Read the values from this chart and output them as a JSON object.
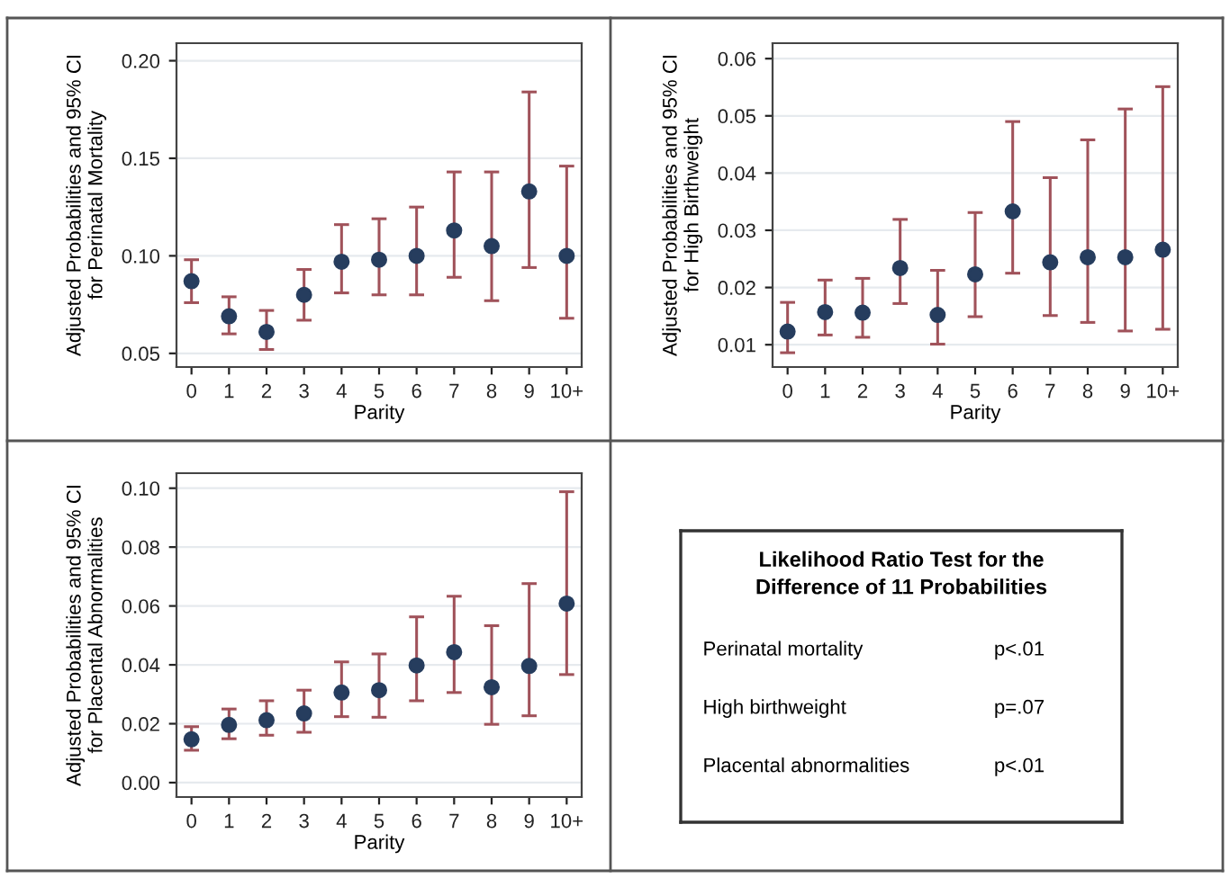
{
  "chart_data": [
    {
      "type": "scatter",
      "ylabel": "Adjusted Probabilities and 95% CI\nfor Perinatal Mortality",
      "xlabel": "Parity",
      "categories": [
        "0",
        "1",
        "2",
        "3",
        "4",
        "5",
        "6",
        "7",
        "8",
        "9",
        "10+"
      ],
      "series": [
        {
          "color": "#263d5e",
          "values": [
            0.087,
            0.069,
            0.061,
            0.08,
            0.097,
            0.098,
            0.1,
            0.113,
            0.105,
            0.133,
            0.1
          ],
          "errors": [
            [
              0.076,
              0.098
            ],
            [
              0.06,
              0.079
            ],
            [
              0.052,
              0.072
            ],
            [
              0.067,
              0.093
            ],
            [
              0.081,
              0.116
            ],
            [
              0.08,
              0.119
            ],
            [
              0.08,
              0.125
            ],
            [
              0.089,
              0.143
            ],
            [
              0.077,
              0.143
            ],
            [
              0.094,
              0.184
            ],
            [
              0.068,
              0.146
            ]
          ]
        }
      ],
      "ylim": [
        0.043,
        0.209
      ],
      "yticks": [
        {
          "value": 0.05,
          "label": "0.05"
        },
        {
          "value": 0.1,
          "label": "0.10"
        },
        {
          "value": 0.15,
          "label": "0.15"
        },
        {
          "value": 0.2,
          "label": "0.20"
        }
      ],
      "grid": "y",
      "marker": "circle"
    },
    {
      "type": "scatter",
      "ylabel": "Adjusted Probabilities and 95% CI\nfor High Birthweight",
      "xlabel": "Parity",
      "categories": [
        "0",
        "1",
        "2",
        "3",
        "4",
        "5",
        "6",
        "7",
        "8",
        "9",
        "10+"
      ],
      "series": [
        {
          "color": "#263d5e",
          "values": [
            0.0123,
            0.0157,
            0.0156,
            0.0234,
            0.0152,
            0.0223,
            0.0333,
            0.0244,
            0.0253,
            0.0253,
            0.0266
          ],
          "errors": [
            [
              0.0086,
              0.0174
            ],
            [
              0.0117,
              0.0213
            ],
            [
              0.0113,
              0.0216
            ],
            [
              0.0172,
              0.0319
            ],
            [
              0.0101,
              0.023
            ],
            [
              0.0149,
              0.0331
            ],
            [
              0.0225,
              0.049
            ],
            [
              0.0151,
              0.0392
            ],
            [
              0.0139,
              0.0458
            ],
            [
              0.0124,
              0.0512
            ],
            [
              0.0127,
              0.0551
            ]
          ]
        }
      ],
      "ylim": [
        0.0061,
        0.0627
      ],
      "yticks": [
        0.01,
        0.02,
        0.03,
        0.04,
        0.05,
        0.06
      ],
      "grid": "y",
      "marker": "circle"
    },
    {
      "type": "scatter",
      "ylabel": "Adjusted Probabilities and 95% CI\nfor Placental Abnormalities",
      "xlabel": "Parity",
      "categories": [
        "0",
        "1",
        "2",
        "3",
        "4",
        "5",
        "6",
        "7",
        "8",
        "9",
        "10+"
      ],
      "series": [
        {
          "color": "#263d5e",
          "values": [
            0.0147,
            0.0196,
            0.0212,
            0.0235,
            0.0306,
            0.0314,
            0.0398,
            0.0443,
            0.0324,
            0.0396,
            0.0608
          ],
          "errors": [
            [
              0.011,
              0.019
            ],
            [
              0.0149,
              0.025
            ],
            [
              0.0161,
              0.0278
            ],
            [
              0.0171,
              0.0314
            ],
            [
              0.0224,
              0.041
            ],
            [
              0.0222,
              0.0437
            ],
            [
              0.0278,
              0.0563
            ],
            [
              0.0306,
              0.0633
            ],
            [
              0.0198,
              0.0533
            ],
            [
              0.0227,
              0.0676
            ],
            [
              0.0367,
              0.0988
            ]
          ]
        }
      ],
      "ylim": [
        -0.0049,
        0.1051
      ],
      "yticks": [
        {
          "value": 0,
          "label": "0.00"
        },
        {
          "value": 0.02,
          "label": "0.02"
        },
        {
          "value": 0.04,
          "label": "0.04"
        },
        {
          "value": 0.06,
          "label": "0.06"
        },
        {
          "value": 0.08,
          "label": "0.08"
        },
        {
          "value": 0.1,
          "label": "0.10"
        }
      ],
      "grid": "y",
      "marker": "circle"
    },
    {
      "type": "other",
      "title": "Likelihood Ratio Test for the\nDifference of 11 Probabilities",
      "annotations": [
        "Perinatal mortality",
        "p<.01",
        "High birthweight",
        "p=.07",
        "Placental abnormalities",
        "p<.01"
      ]
    }
  ]
}
